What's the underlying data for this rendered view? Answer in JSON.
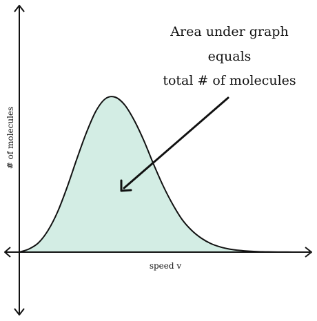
{
  "chart_data": {
    "type": "area",
    "title": "",
    "xlabel": "speed v",
    "ylabel": "# of molecules",
    "grid": false,
    "legend": "none",
    "x_ticks": [],
    "y_ticks": [],
    "series": [
      {
        "curve": "maxwell-boltzmann",
        "x": [
          0,
          0.1,
          0.2,
          0.3,
          0.4,
          0.5,
          0.6,
          0.7,
          0.8,
          0.9,
          1.0,
          1.1,
          1.2,
          1.3,
          1.4,
          1.5,
          1.6,
          1.7,
          1.8,
          1.9,
          2.0,
          2.1,
          2.2,
          2.3,
          2.4,
          2.5,
          2.6,
          2.7,
          2.8,
          2.9,
          3.0
        ],
        "y": [
          0,
          0.02,
          0.06,
          0.14,
          0.26,
          0.42,
          0.6,
          0.77,
          0.91,
          0.99,
          1.0,
          0.95,
          0.85,
          0.72,
          0.57,
          0.43,
          0.31,
          0.21,
          0.14,
          0.09,
          0.055,
          0.033,
          0.019,
          0.011,
          0.006,
          0.003,
          0.0015,
          0.0007,
          0.0003,
          0.0001,
          0
        ]
      }
    ],
    "colors": {
      "fill": "#d3ede4",
      "stroke": "#111111"
    },
    "annotations": [
      {
        "lines": [
          "Area under graph",
          "equals",
          "total # of molecules"
        ],
        "arrow": "points-to-area"
      }
    ],
    "xlim": [
      0,
      3
    ],
    "ylim": [
      0,
      1
    ]
  }
}
